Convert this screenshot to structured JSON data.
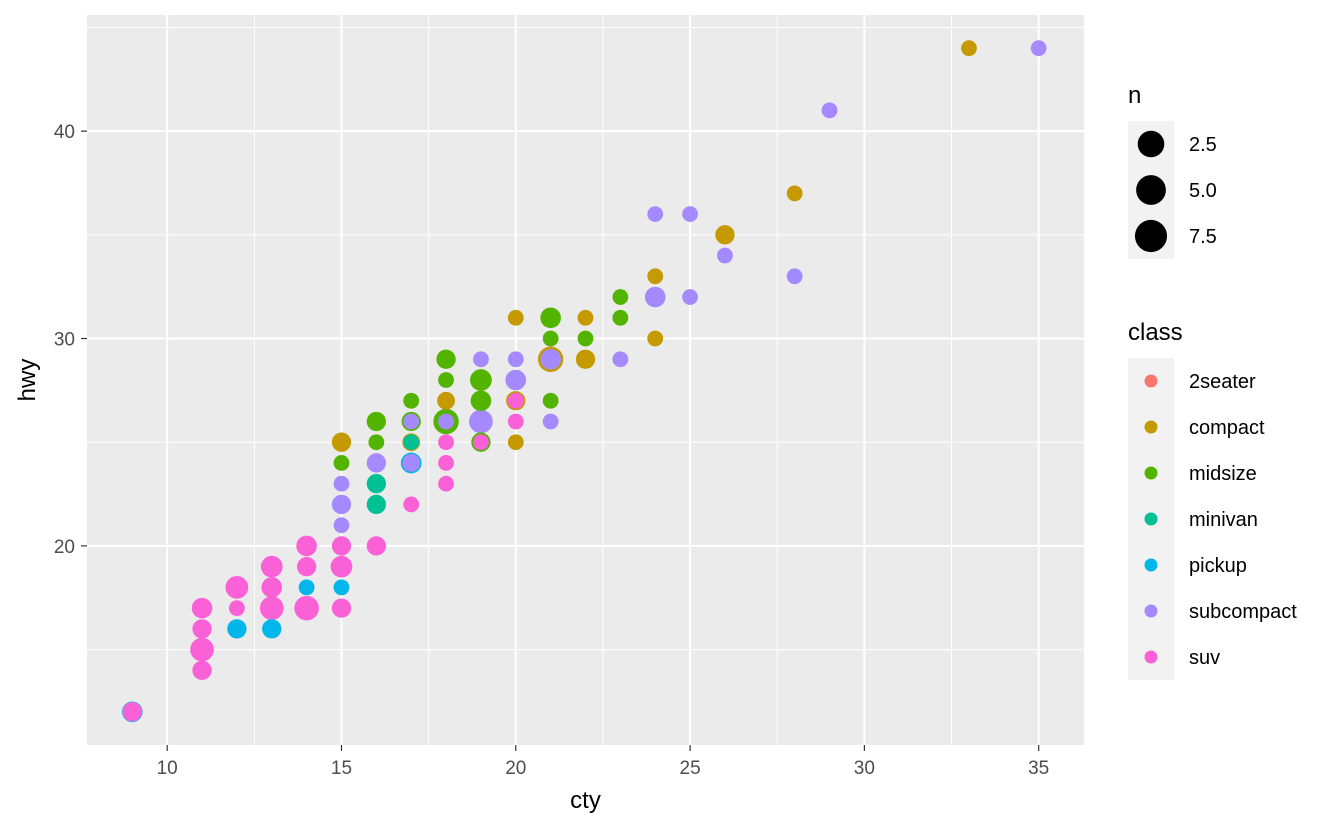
{
  "chart_data": {
    "type": "scatter",
    "xlabel": "cty",
    "ylabel": "hwy",
    "xlim": [
      7.7,
      36.3
    ],
    "ylim": [
      10.4,
      45.6
    ],
    "x_ticks": [
      10,
      15,
      20,
      25,
      30,
      35
    ],
    "y_ticks": [
      20,
      30,
      40
    ],
    "grid": true,
    "size_legend": {
      "title": "n",
      "entries": [
        {
          "label": "2.5",
          "n": 2.5
        },
        {
          "label": "5.0",
          "n": 5.0
        },
        {
          "label": "7.5",
          "n": 7.5
        }
      ]
    },
    "color_legend": {
      "title": "class",
      "position": "right",
      "entries": [
        {
          "name": "2seater",
          "color": "#F8766D"
        },
        {
          "name": "compact",
          "color": "#C49A00"
        },
        {
          "name": "midsize",
          "color": "#53B400"
        },
        {
          "name": "minivan",
          "color": "#00C094"
        },
        {
          "name": "pickup",
          "color": "#00B6EB"
        },
        {
          "name": "subcompact",
          "color": "#A58AFF"
        },
        {
          "name": "suv",
          "color": "#FB61D7"
        }
      ]
    },
    "series": [
      {
        "name": "compact",
        "color": "#C49A00",
        "points": [
          [
            33,
            44,
            1
          ],
          [
            28,
            37,
            1
          ],
          [
            26,
            35,
            3
          ],
          [
            24,
            33,
            1
          ],
          [
            24,
            30,
            1
          ],
          [
            22,
            31,
            1
          ],
          [
            20,
            31,
            1
          ],
          [
            22,
            29,
            3
          ],
          [
            21,
            29,
            9
          ],
          [
            20,
            27,
            3
          ],
          [
            20,
            25,
            1
          ],
          [
            18,
            27,
            2
          ],
          [
            17,
            25,
            2
          ],
          [
            15,
            25,
            3
          ]
        ]
      },
      {
        "name": "midsize",
        "color": "#53B400",
        "points": [
          [
            21,
            31,
            4
          ],
          [
            23,
            32,
            1
          ],
          [
            23,
            31,
            1
          ],
          [
            22,
            30,
            1
          ],
          [
            21,
            30,
            1
          ],
          [
            21,
            27,
            1
          ],
          [
            19,
            28,
            5
          ],
          [
            19,
            27,
            4
          ],
          [
            18,
            29,
            3
          ],
          [
            18,
            28,
            1
          ],
          [
            18,
            26,
            9
          ],
          [
            17,
            27,
            1
          ],
          [
            17,
            26,
            3
          ],
          [
            16,
            26,
            3
          ],
          [
            16,
            25,
            1
          ],
          [
            15,
            24,
            1
          ],
          [
            19,
            25,
            3
          ]
        ]
      },
      {
        "name": "minivan",
        "color": "#00C094",
        "points": [
          [
            16,
            23,
            3
          ],
          [
            16,
            22,
            3
          ],
          [
            17,
            24,
            4
          ],
          [
            17,
            25,
            1
          ]
        ]
      },
      {
        "name": "pickup",
        "color": "#00B6EB",
        "points": [
          [
            9,
            12,
            4
          ],
          [
            12,
            16,
            3
          ],
          [
            13,
            16,
            3
          ],
          [
            14,
            18,
            1
          ],
          [
            15,
            18,
            1
          ],
          [
            17,
            24,
            4
          ]
        ]
      },
      {
        "name": "subcompact",
        "color": "#A58AFF",
        "points": [
          [
            35,
            44,
            1
          ],
          [
            29,
            41,
            1
          ],
          [
            24,
            36,
            1
          ],
          [
            25,
            36,
            1
          ],
          [
            26,
            34,
            1
          ],
          [
            28,
            33,
            1
          ],
          [
            24,
            32,
            4
          ],
          [
            25,
            32,
            1
          ],
          [
            23,
            29,
            1
          ],
          [
            21,
            29,
            4
          ],
          [
            20,
            29,
            1
          ],
          [
            19,
            29,
            1
          ],
          [
            20,
            28,
            4
          ],
          [
            19,
            26,
            7
          ],
          [
            21,
            26,
            1
          ],
          [
            18,
            26,
            1
          ],
          [
            17,
            26,
            1
          ],
          [
            16,
            24,
            3
          ],
          [
            17,
            24,
            2
          ],
          [
            15,
            23,
            1
          ],
          [
            15,
            22,
            3
          ],
          [
            15,
            21,
            1
          ],
          [
            20,
            27,
            1
          ]
        ]
      },
      {
        "name": "suv",
        "color": "#FB61D7",
        "points": [
          [
            9,
            12,
            3
          ],
          [
            11,
            14,
            3
          ],
          [
            11,
            15,
            7
          ],
          [
            11,
            16,
            3
          ],
          [
            11,
            17,
            4
          ],
          [
            12,
            17,
            1
          ],
          [
            12,
            18,
            6
          ],
          [
            13,
            17,
            7
          ],
          [
            13,
            18,
            4
          ],
          [
            13,
            19,
            5
          ],
          [
            14,
            17,
            8
          ],
          [
            14,
            19,
            3
          ],
          [
            14,
            20,
            4
          ],
          [
            15,
            17,
            3
          ],
          [
            15,
            19,
            5
          ],
          [
            15,
            20,
            3
          ],
          [
            16,
            20,
            3
          ],
          [
            17,
            22,
            1
          ],
          [
            18,
            23,
            1
          ],
          [
            18,
            24,
            1
          ],
          [
            18,
            25,
            1
          ],
          [
            19,
            25,
            1
          ],
          [
            20,
            26,
            1
          ],
          [
            20,
            27,
            1
          ]
        ]
      }
    ]
  }
}
